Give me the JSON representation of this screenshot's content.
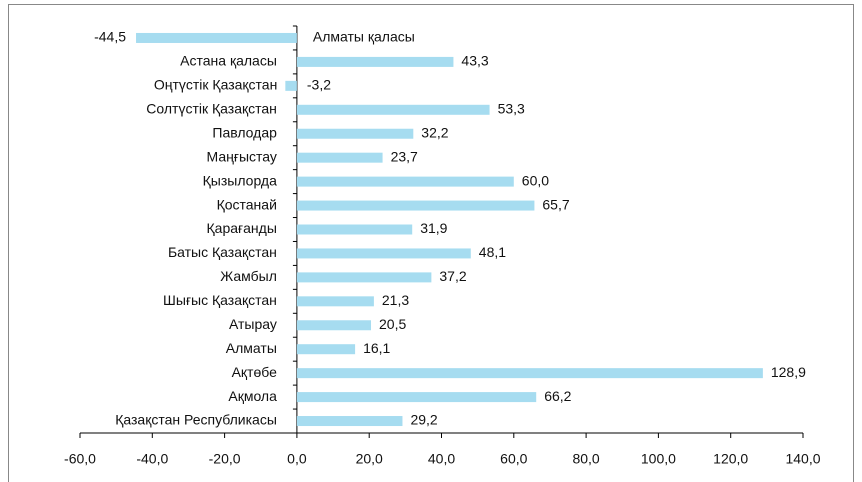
{
  "chart_data": {
    "type": "barh",
    "categories": [
      "Алматы қаласы",
      "Астана қаласы",
      "Оңтүстік Қазақстан",
      "Солтүстік Қазақстан",
      "Павлодар",
      "Маңғыстау",
      "Қызылорда",
      "Қостанай",
      "Қарағанды",
      "Батыс Қазақстан",
      "Жамбыл",
      "Шығыс Қазақстан",
      "Атырау",
      "Алматы",
      "Ақтөбе",
      "Ақмола",
      "Қазақстан Республикасы"
    ],
    "values": [
      -44.5,
      43.3,
      -3.2,
      53.3,
      32.2,
      23.7,
      60.0,
      65.7,
      31.9,
      48.1,
      37.2,
      21.3,
      20.5,
      16.1,
      128.9,
      66.2,
      29.2
    ],
    "value_labels": [
      "-44,5",
      "43,3",
      "-3,2",
      "53,3",
      "32,2",
      "23,7",
      "60,0",
      "65,7",
      "31,9",
      "48,1",
      "37,2",
      "21,3",
      "20,5",
      "16,1",
      "128,9",
      "66,2",
      "29,2"
    ],
    "color": "#a6dcf0",
    "xlim": [
      -60,
      140
    ],
    "xticks": [
      {
        "value": -60,
        "label": "-60,0"
      },
      {
        "value": -40,
        "label": "-40,0"
      },
      {
        "value": -20,
        "label": "-20,0"
      },
      {
        "value": 0,
        "label": "0,0"
      },
      {
        "value": 20,
        "label": "20,0"
      },
      {
        "value": 40,
        "label": "40,0"
      },
      {
        "value": 60,
        "label": "60,0"
      },
      {
        "value": 80,
        "label": "80,0"
      },
      {
        "value": 100,
        "label": "100,0"
      },
      {
        "value": 120,
        "label": "120,0"
      },
      {
        "value": 140,
        "label": "140,0"
      }
    ]
  }
}
